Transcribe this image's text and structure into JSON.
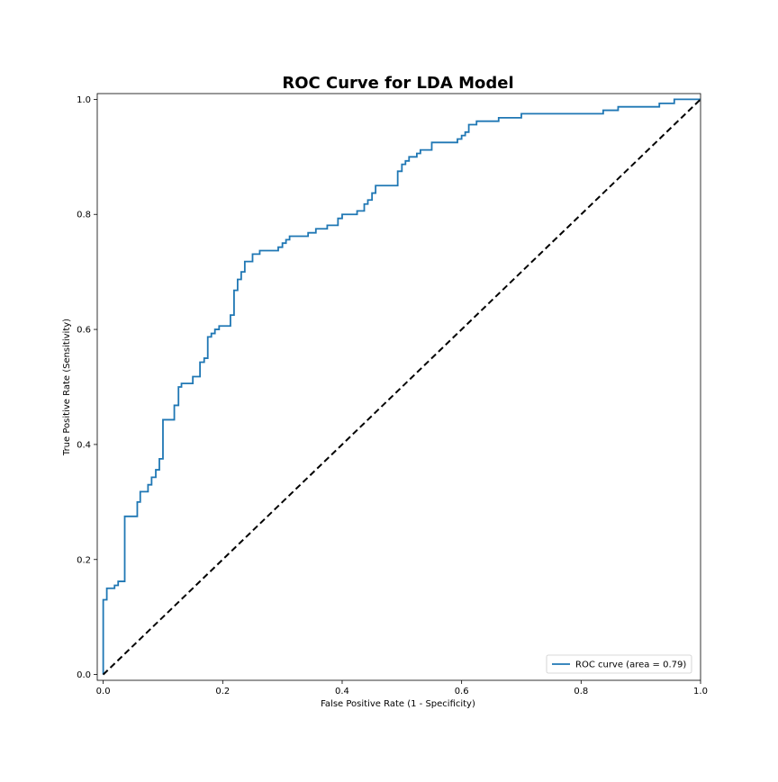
{
  "chart_data": {
    "type": "line",
    "title": "ROC Curve for LDA Model",
    "xlabel": "False Positive Rate (1 - Specificity)",
    "ylabel": "True Positive Rate (Sensitivity)",
    "xlim": [
      -0.01,
      1.0
    ],
    "ylim": [
      -0.01,
      1.01
    ],
    "xticks": [
      0.0,
      0.2,
      0.4,
      0.6,
      0.8,
      1.0
    ],
    "xtick_labels": [
      "0.0",
      "0.2",
      "0.4",
      "0.6",
      "0.8",
      "1.0"
    ],
    "yticks": [
      0.0,
      0.2,
      0.4,
      0.6,
      0.8,
      1.0
    ],
    "ytick_labels": [
      "0.0",
      "0.2",
      "0.4",
      "0.6",
      "0.8",
      "1.0"
    ],
    "grid": false,
    "legend_position": "lower-right",
    "series": [
      {
        "name": "ROC curve (area =  0.79)",
        "color": "#1f77b4",
        "style": "solid",
        "step": true,
        "points": [
          [
            0.0,
            0.0
          ],
          [
            0.0,
            0.13
          ],
          [
            0.006,
            0.13
          ],
          [
            0.006,
            0.15
          ],
          [
            0.019,
            0.15
          ],
          [
            0.019,
            0.155
          ],
          [
            0.025,
            0.155
          ],
          [
            0.025,
            0.162
          ],
          [
            0.036,
            0.162
          ],
          [
            0.036,
            0.275
          ],
          [
            0.057,
            0.275
          ],
          [
            0.057,
            0.3
          ],
          [
            0.062,
            0.3
          ],
          [
            0.062,
            0.318
          ],
          [
            0.075,
            0.318
          ],
          [
            0.075,
            0.33
          ],
          [
            0.081,
            0.33
          ],
          [
            0.081,
            0.343
          ],
          [
            0.088,
            0.343
          ],
          [
            0.088,
            0.356
          ],
          [
            0.094,
            0.356
          ],
          [
            0.094,
            0.375
          ],
          [
            0.1,
            0.375
          ],
          [
            0.1,
            0.443
          ],
          [
            0.119,
            0.443
          ],
          [
            0.119,
            0.468
          ],
          [
            0.126,
            0.468
          ],
          [
            0.126,
            0.5
          ],
          [
            0.131,
            0.5
          ],
          [
            0.131,
            0.506
          ],
          [
            0.15,
            0.506
          ],
          [
            0.15,
            0.518
          ],
          [
            0.162,
            0.518
          ],
          [
            0.162,
            0.543
          ],
          [
            0.169,
            0.543
          ],
          [
            0.169,
            0.55
          ],
          [
            0.175,
            0.55
          ],
          [
            0.175,
            0.587
          ],
          [
            0.181,
            0.587
          ],
          [
            0.181,
            0.593
          ],
          [
            0.187,
            0.593
          ],
          [
            0.187,
            0.6
          ],
          [
            0.194,
            0.6
          ],
          [
            0.194,
            0.606
          ],
          [
            0.213,
            0.606
          ],
          [
            0.213,
            0.625
          ],
          [
            0.219,
            0.625
          ],
          [
            0.219,
            0.668
          ],
          [
            0.225,
            0.668
          ],
          [
            0.225,
            0.687
          ],
          [
            0.231,
            0.687
          ],
          [
            0.231,
            0.7
          ],
          [
            0.237,
            0.7
          ],
          [
            0.237,
            0.718
          ],
          [
            0.25,
            0.718
          ],
          [
            0.25,
            0.731
          ],
          [
            0.262,
            0.731
          ],
          [
            0.262,
            0.737
          ],
          [
            0.293,
            0.737
          ],
          [
            0.293,
            0.743
          ],
          [
            0.3,
            0.743
          ],
          [
            0.3,
            0.75
          ],
          [
            0.306,
            0.75
          ],
          [
            0.306,
            0.756
          ],
          [
            0.312,
            0.756
          ],
          [
            0.312,
            0.762
          ],
          [
            0.343,
            0.762
          ],
          [
            0.343,
            0.768
          ],
          [
            0.356,
            0.768
          ],
          [
            0.356,
            0.775
          ],
          [
            0.375,
            0.775
          ],
          [
            0.375,
            0.781
          ],
          [
            0.393,
            0.781
          ],
          [
            0.393,
            0.793
          ],
          [
            0.4,
            0.793
          ],
          [
            0.4,
            0.8
          ],
          [
            0.425,
            0.8
          ],
          [
            0.425,
            0.806
          ],
          [
            0.437,
            0.806
          ],
          [
            0.437,
            0.818
          ],
          [
            0.443,
            0.818
          ],
          [
            0.443,
            0.825
          ],
          [
            0.45,
            0.825
          ],
          [
            0.45,
            0.837
          ],
          [
            0.456,
            0.837
          ],
          [
            0.456,
            0.85
          ],
          [
            0.493,
            0.85
          ],
          [
            0.493,
            0.875
          ],
          [
            0.5,
            0.875
          ],
          [
            0.5,
            0.887
          ],
          [
            0.506,
            0.887
          ],
          [
            0.506,
            0.893
          ],
          [
            0.512,
            0.893
          ],
          [
            0.512,
            0.9
          ],
          [
            0.525,
            0.9
          ],
          [
            0.525,
            0.906
          ],
          [
            0.531,
            0.906
          ],
          [
            0.531,
            0.912
          ],
          [
            0.55,
            0.912
          ],
          [
            0.55,
            0.925
          ],
          [
            0.593,
            0.925
          ],
          [
            0.593,
            0.931
          ],
          [
            0.6,
            0.931
          ],
          [
            0.6,
            0.937
          ],
          [
            0.606,
            0.937
          ],
          [
            0.606,
            0.943
          ],
          [
            0.612,
            0.943
          ],
          [
            0.612,
            0.956
          ],
          [
            0.625,
            0.956
          ],
          [
            0.625,
            0.962
          ],
          [
            0.662,
            0.962
          ],
          [
            0.662,
            0.968
          ],
          [
            0.7,
            0.968
          ],
          [
            0.7,
            0.975
          ],
          [
            0.837,
            0.975
          ],
          [
            0.837,
            0.981
          ],
          [
            0.862,
            0.981
          ],
          [
            0.862,
            0.987
          ],
          [
            0.931,
            0.987
          ],
          [
            0.931,
            0.993
          ],
          [
            0.956,
            0.993
          ],
          [
            0.956,
            1.0
          ],
          [
            1.0,
            1.0
          ]
        ]
      },
      {
        "name": "",
        "color": "#000000",
        "style": "dashed",
        "points": [
          [
            0.0,
            0.0
          ],
          [
            1.0,
            1.0
          ]
        ]
      }
    ]
  }
}
